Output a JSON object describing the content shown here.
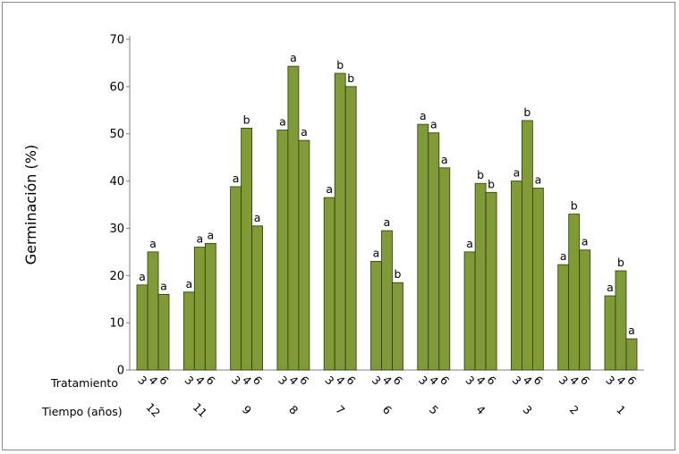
{
  "chart_data": {
    "type": "bar",
    "ylabel": "Germinación (%)",
    "ylim": [
      0,
      70
    ],
    "yticks": [
      0,
      10,
      20,
      30,
      40,
      50,
      60,
      70
    ],
    "grid": false,
    "row_labels": {
      "treatment": "Tratamiento",
      "time": "Tiempo (años)"
    },
    "groups": [
      {
        "time": "12",
        "bars": [
          {
            "treatment": "3",
            "value": 18,
            "letter": "a"
          },
          {
            "treatment": "4",
            "value": 25,
            "letter": "a"
          },
          {
            "treatment": "6",
            "value": 16,
            "letter": "a"
          }
        ]
      },
      {
        "time": "11",
        "bars": [
          {
            "treatment": "3",
            "value": 16.5,
            "letter": "a"
          },
          {
            "treatment": "4",
            "value": 26,
            "letter": "a"
          },
          {
            "treatment": "6",
            "value": 26.8,
            "letter": "a"
          }
        ]
      },
      {
        "time": "9",
        "bars": [
          {
            "treatment": "3",
            "value": 38.8,
            "letter": "a"
          },
          {
            "treatment": "4",
            "value": 51.2,
            "letter": "b"
          },
          {
            "treatment": "6",
            "value": 30.5,
            "letter": "a"
          }
        ]
      },
      {
        "time": "8",
        "bars": [
          {
            "treatment": "3",
            "value": 50.8,
            "letter": "a"
          },
          {
            "treatment": "4",
            "value": 64.3,
            "letter": "a"
          },
          {
            "treatment": "6",
            "value": 48.6,
            "letter": "a"
          }
        ]
      },
      {
        "time": "7",
        "bars": [
          {
            "treatment": "3",
            "value": 36.5,
            "letter": "a"
          },
          {
            "treatment": "4",
            "value": 62.8,
            "letter": "b"
          },
          {
            "treatment": "6",
            "value": 60,
            "letter": "b"
          }
        ]
      },
      {
        "time": "6",
        "bars": [
          {
            "treatment": "3",
            "value": 23,
            "letter": "a"
          },
          {
            "treatment": "4",
            "value": 29.5,
            "letter": "a"
          },
          {
            "treatment": "6",
            "value": 18.5,
            "letter": "b"
          }
        ]
      },
      {
        "time": "5",
        "bars": [
          {
            "treatment": "3",
            "value": 52,
            "letter": "a"
          },
          {
            "treatment": "4",
            "value": 50.2,
            "letter": "a"
          },
          {
            "treatment": "6",
            "value": 42.8,
            "letter": "a"
          }
        ]
      },
      {
        "time": "4",
        "bars": [
          {
            "treatment": "3",
            "value": 25,
            "letter": "a"
          },
          {
            "treatment": "4",
            "value": 39.5,
            "letter": "b"
          },
          {
            "treatment": "6",
            "value": 37.6,
            "letter": "b"
          }
        ]
      },
      {
        "time": "3",
        "bars": [
          {
            "treatment": "3",
            "value": 40,
            "letter": "a"
          },
          {
            "treatment": "4",
            "value": 52.8,
            "letter": "b"
          },
          {
            "treatment": "6",
            "value": 38.5,
            "letter": "a"
          }
        ]
      },
      {
        "time": "2",
        "bars": [
          {
            "treatment": "3",
            "value": 22.3,
            "letter": "a"
          },
          {
            "treatment": "4",
            "value": 33,
            "letter": "b"
          },
          {
            "treatment": "6",
            "value": 25.4,
            "letter": "a"
          }
        ]
      },
      {
        "time": "1",
        "bars": [
          {
            "treatment": "3",
            "value": 15.7,
            "letter": "a"
          },
          {
            "treatment": "4",
            "value": 21,
            "letter": "b"
          },
          {
            "treatment": "6",
            "value": 6.6,
            "letter": "a"
          }
        ]
      }
    ],
    "colors": {
      "bar_fill": "#7f9a36",
      "bar_stroke": "#2d3a12",
      "axis": "#808080"
    }
  }
}
